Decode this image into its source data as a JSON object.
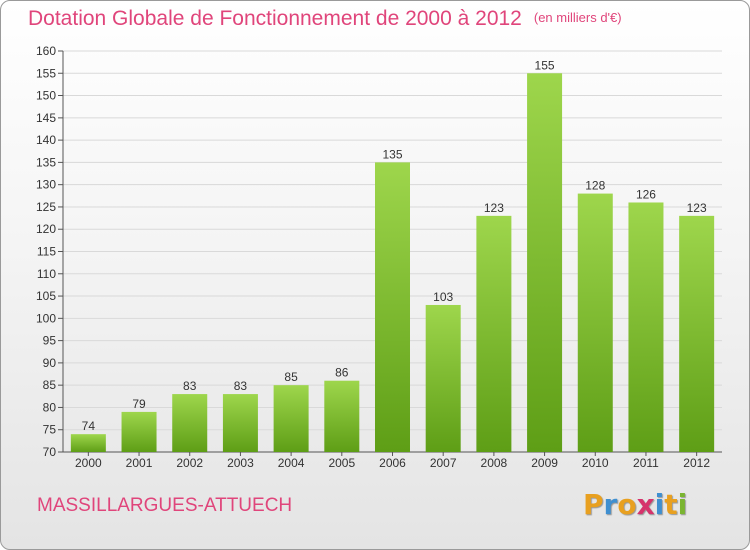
{
  "header": {
    "title": "Dotation Globale de Fonctionnement de 2000 à 2012",
    "subtitle": "(en milliers d'€)"
  },
  "footer": {
    "commune": "MASSILLARGUES-ATTUECH",
    "brand_letters": [
      "P",
      "r",
      "o",
      "x",
      "i",
      "t",
      "i"
    ],
    "brand_colors": [
      "#e8a020",
      "#3f8fd0",
      "#e8a020",
      "#d6336c",
      "#3f8fd0",
      "#e8a020",
      "#7ab530"
    ]
  },
  "colors": {
    "bar_top": "#9ed64c",
    "bar_bottom": "#5e9e16",
    "grid": "#d9d9d9",
    "accent": "#e0457b"
  },
  "chart_data": {
    "type": "bar",
    "title": "Dotation Globale de Fonctionnement de 2000 à 2012",
    "subtitle": "(en milliers d'€)",
    "categories": [
      "2000",
      "2001",
      "2002",
      "2003",
      "2004",
      "2005",
      "2006",
      "2007",
      "2008",
      "2009",
      "2010",
      "2011",
      "2012"
    ],
    "values": [
      74,
      79,
      83,
      83,
      85,
      86,
      135,
      103,
      123,
      155,
      128,
      126,
      123
    ],
    "ylim": [
      70,
      160
    ],
    "yticks": [
      70,
      75,
      80,
      85,
      90,
      95,
      100,
      105,
      110,
      115,
      120,
      125,
      130,
      135,
      140,
      145,
      150,
      155,
      160
    ],
    "grid": true,
    "xlabel": "",
    "ylabel": ""
  }
}
